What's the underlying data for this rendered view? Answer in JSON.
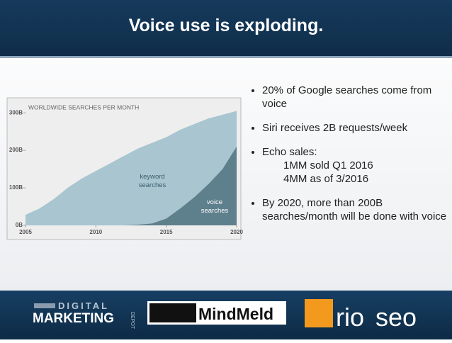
{
  "title": "Voice use is exploding.",
  "bullets": [
    "20% of Google searches come from voice",
    "Siri receives 2B requests/week",
    "Echo sales:",
    "By 2020, more than 200B searches/month will be done with voice"
  ],
  "echo_details": [
    "1MM sold Q1 2016",
    "4MM as of 3/2016"
  ],
  "logos": {
    "digital": "DIGITAL",
    "marketing": "MARKETING",
    "depot": "DEPOT",
    "mindmeld": "MindMeld",
    "rio": "rio",
    "seo": "seo"
  },
  "chart_data": {
    "type": "area",
    "title": "WORLDWIDE SEARCHES PER MONTH",
    "x": [
      2005,
      2006,
      2007,
      2008,
      2009,
      2010,
      2011,
      2012,
      2013,
      2014,
      2015,
      2016,
      2017,
      2018,
      2019,
      2020
    ],
    "series": [
      {
        "name": "keyword searches",
        "color": "#a8c5d0",
        "values": [
          28,
          45,
          70,
          100,
          125,
          145,
          165,
          185,
          205,
          220,
          235,
          255,
          270,
          285,
          295,
          305
        ]
      },
      {
        "name": "voice searches",
        "color": "#5e7f8c",
        "values": [
          0,
          0,
          0,
          0,
          0,
          0,
          0,
          0,
          2,
          5,
          18,
          45,
          75,
          110,
          150,
          210
        ]
      }
    ],
    "xlim": [
      2005,
      2020
    ],
    "xticks": [
      2005,
      2010,
      2015,
      2020
    ],
    "ylim": [
      0,
      340
    ],
    "yticks": [
      {
        "value": 0,
        "label": "0B"
      },
      {
        "value": 100,
        "label": "100B"
      },
      {
        "value": 200,
        "label": "200B"
      },
      {
        "value": 300,
        "label": "300B"
      }
    ]
  }
}
